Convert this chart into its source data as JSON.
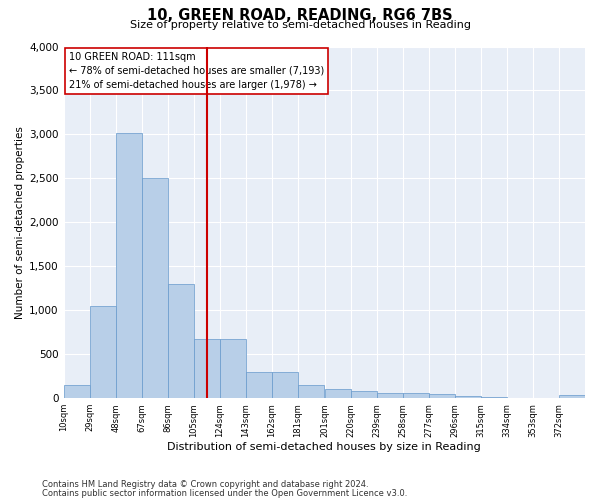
{
  "title": "10, GREEN ROAD, READING, RG6 7BS",
  "subtitle": "Size of property relative to semi-detached houses in Reading",
  "xlabel": "Distribution of semi-detached houses by size in Reading",
  "ylabel": "Number of semi-detached properties",
  "footer1": "Contains HM Land Registry data © Crown copyright and database right 2024.",
  "footer2": "Contains public sector information licensed under the Open Government Licence v3.0.",
  "annotation_title": "10 GREEN ROAD: 111sqm",
  "annotation_line1": "← 78% of semi-detached houses are smaller (7,193)",
  "annotation_line2": "21% of semi-detached houses are larger (1,978) →",
  "bar_color": "#b8cfe8",
  "bar_edge_color": "#6699cc",
  "marker_color": "#cc0000",
  "marker_value": 114.5,
  "bin_edges": [
    10,
    29,
    48,
    67,
    86,
    105,
    124,
    143,
    162,
    181,
    201,
    220,
    239,
    258,
    277,
    296,
    315,
    334,
    353,
    372,
    391
  ],
  "bin_counts": [
    150,
    1050,
    3020,
    2500,
    1300,
    670,
    670,
    300,
    300,
    150,
    100,
    80,
    60,
    60,
    50,
    30,
    10,
    0,
    0,
    40
  ],
  "ylim": [
    0,
    4000
  ],
  "yticks": [
    0,
    500,
    1000,
    1500,
    2000,
    2500,
    3000,
    3500,
    4000
  ],
  "plot_background": "#e8eef7",
  "grid_color": "#ffffff",
  "fig_background": "#ffffff"
}
